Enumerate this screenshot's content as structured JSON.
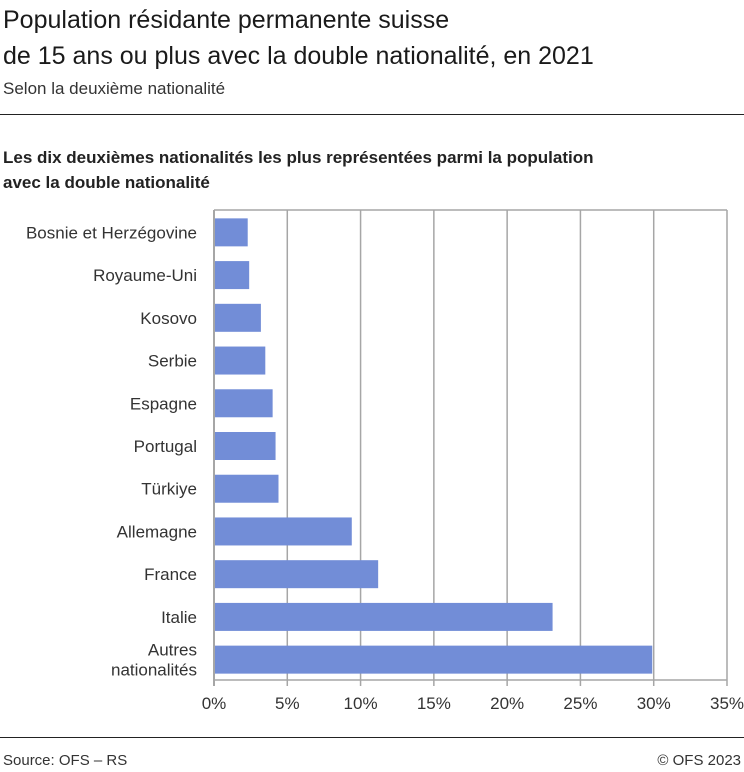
{
  "title_line1": "Population résidante permanente suisse",
  "title_line2": "de 15 ans ou plus avec la double nationalité, en 2021",
  "subtitle": "Selon la deuxième nationalité",
  "footer": {
    "source": "Source: OFS – RS",
    "copyright": "© OFS 2023"
  },
  "chart_data": {
    "type": "bar",
    "orientation": "horizontal",
    "title": "Les dix deuxièmes nationalités les plus représentées parmi la population avec la double nationalité",
    "title_line1": "Les dix deuxièmes nationalités les plus représentées parmi la population",
    "title_line2": "avec la double nationalité",
    "categories": [
      "Bosnie et Herzégovine",
      "Royaume-Uni",
      "Kosovo",
      "Serbie",
      "Espagne",
      "Portugal",
      "Türkiye",
      "Allemagne",
      "France",
      "Italie",
      "Autres nationalités"
    ],
    "values": [
      2.3,
      2.4,
      3.2,
      3.5,
      4.0,
      4.2,
      4.4,
      9.4,
      11.2,
      23.1,
      29.9
    ],
    "xlim": [
      0,
      35
    ],
    "xticks": [
      0,
      5,
      10,
      15,
      20,
      25,
      30,
      35
    ],
    "xtick_labels": [
      "0%",
      "5%",
      "10%",
      "15%",
      "20%",
      "25%",
      "30%",
      "35%"
    ],
    "grid": true,
    "bar_color": "#728dd7",
    "grid_color": "#a6a6a6"
  }
}
